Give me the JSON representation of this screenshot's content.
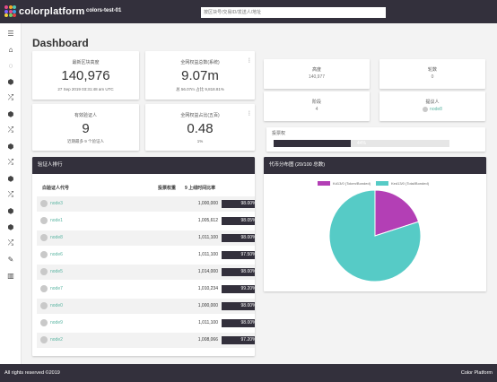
{
  "header": {
    "brand": "colorplatform",
    "brand_colors": [
      "#e44c8c",
      "#f5a623",
      "#4fc3b0",
      "#7b61ff",
      "#e44c8c",
      "#3aa0e0",
      "#f5d23a",
      "#6fcf6a",
      "#e04444"
    ],
    "network": "colors-test-01",
    "search_placeholder": "按区块号/交易ID/发送人/地址"
  },
  "sidebar": {
    "items": [
      {
        "icon": "menu-icon",
        "glyph": "☰"
      },
      {
        "icon": "home-icon",
        "glyph": "⌂"
      },
      {
        "icon": "spinner-icon",
        "glyph": "◌"
      },
      {
        "icon": "cube-icon",
        "glyph": "⬢"
      },
      {
        "icon": "shuffle-icon",
        "glyph": "⤮"
      },
      {
        "icon": "cube-icon",
        "glyph": "⬢"
      },
      {
        "icon": "shuffle-icon",
        "glyph": "⤮"
      },
      {
        "icon": "cube-icon",
        "glyph": "⬢"
      },
      {
        "icon": "shuffle-icon",
        "glyph": "⤮"
      },
      {
        "icon": "cube-icon",
        "glyph": "⬢"
      },
      {
        "icon": "shuffle-icon",
        "glyph": "⤮"
      },
      {
        "icon": "cube-icon",
        "glyph": "⬢"
      },
      {
        "icon": "cube-icon",
        "glyph": "⬢"
      },
      {
        "icon": "shuffle-icon",
        "glyph": "⤮"
      },
      {
        "icon": "edit-icon",
        "glyph": "✎"
      },
      {
        "icon": "chart-icon",
        "glyph": "▥"
      }
    ]
  },
  "page": {
    "title": "Dashboard"
  },
  "stats": {
    "latest_block": {
      "label": "最新区块高度",
      "value": "140,976",
      "sub": "27 Sep 2019 03:31:48 am UTC"
    },
    "total_stake": {
      "label": "全网权益总数(系统)",
      "value": "9.07m",
      "sub": "总 56.07m 占比 9,818.81%"
    },
    "validators": {
      "label": "有效验证人",
      "value": "9",
      "sub": "近期最多 9 个验证人"
    },
    "circulating": {
      "label": "全网权益占比(五百)",
      "value": "0.48",
      "sub": "1%"
    }
  },
  "small_stats": {
    "height": {
      "label": "高度",
      "value": "140,977"
    },
    "rounds": {
      "label": "轮数",
      "value": "0"
    },
    "step": {
      "label": "阶段",
      "value": "4"
    },
    "proposer": {
      "label": "提议人",
      "value": "node8"
    }
  },
  "progress": {
    "label": "投票权",
    "value": 0.44,
    "text": "44%"
  },
  "validators_table": {
    "title": "验证人排行",
    "headers": {
      "id": "白验证人代号",
      "power": "投票权重",
      "rate": "9 上线时间比率"
    },
    "rows": [
      {
        "id": "node3",
        "power": "1,000,000",
        "rate": "98.00%"
      },
      {
        "id": "node1",
        "power": "1,005,612",
        "rate": "98.05%"
      },
      {
        "id": "node8",
        "power": "1,011,100",
        "rate": "98.00%"
      },
      {
        "id": "node6",
        "power": "1,011,100",
        "rate": "97.50%"
      },
      {
        "id": "node5",
        "power": "1,014,000",
        "rate": "98.00%"
      },
      {
        "id": "node7",
        "power": "1,010,234",
        "rate": "99.20%"
      },
      {
        "id": "node0",
        "power": "1,000,000",
        "rate": "98.00%"
      },
      {
        "id": "node9",
        "power": "1,011,100",
        "rate": "98.00%"
      },
      {
        "id": "node2",
        "power": "1,008,066",
        "rate": "97.20%"
      }
    ]
  },
  "chart_data": {
    "type": "pie",
    "title": "代币分布图 (20/100 总数)",
    "series": [
      {
        "name": "Kd13/0 (Token/Bonded)",
        "value": 20,
        "color": "#b33fb5"
      },
      {
        "name": "Ked13/0 (Total/Bonded)",
        "value": 80,
        "color": "#56cbc6"
      }
    ]
  },
  "footer": {
    "left": "All rights reserved ©2019",
    "right": "Color Platform"
  }
}
